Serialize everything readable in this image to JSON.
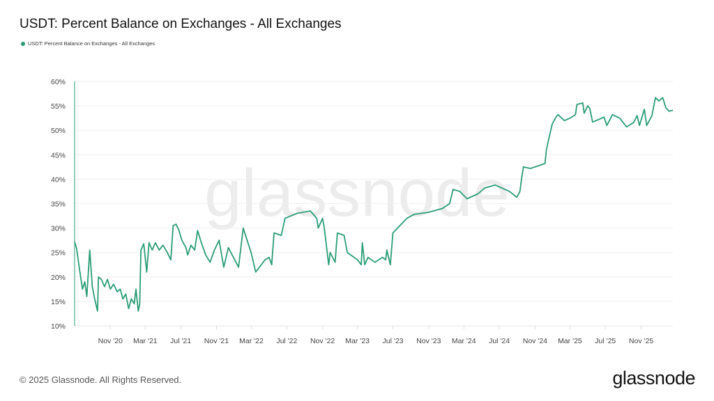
{
  "chart_data": {
    "type": "line",
    "title": "USDT: Percent Balance on Exchanges - All Exchanges",
    "xlabel": "",
    "ylabel": "",
    "ylim": [
      10,
      60
    ],
    "xlim": [
      "2020-07-01",
      "2026-02-18"
    ],
    "y_ticks": [
      "10%",
      "15%",
      "20%",
      "25%",
      "30%",
      "35%",
      "40%",
      "45%",
      "50%",
      "55%",
      "60%"
    ],
    "x_ticks": [
      {
        "date": "2020-11-01",
        "label": "Nov '20"
      },
      {
        "date": "2021-03-01",
        "label": "Mar '21"
      },
      {
        "date": "2021-07-01",
        "label": "Jul '21"
      },
      {
        "date": "2021-11-01",
        "label": "Nov '21"
      },
      {
        "date": "2022-03-01",
        "label": "Mar '22"
      },
      {
        "date": "2022-07-01",
        "label": "Jul '22"
      },
      {
        "date": "2022-11-01",
        "label": "Nov '22"
      },
      {
        "date": "2023-03-01",
        "label": "Mar '23"
      },
      {
        "date": "2023-07-01",
        "label": "Jul '23"
      },
      {
        "date": "2023-11-01",
        "label": "Nov '23"
      },
      {
        "date": "2024-03-01",
        "label": "Mar '24"
      },
      {
        "date": "2024-07-01",
        "label": "Jul '24"
      },
      {
        "date": "2024-11-01",
        "label": "Nov '24"
      },
      {
        "date": "2025-03-01",
        "label": "Mar '25"
      },
      {
        "date": "2025-07-01",
        "label": "Jul '25"
      },
      {
        "date": "2025-11-01",
        "label": "Nov '25"
      }
    ],
    "grid": true,
    "legend_placement": "top-left",
    "series": [
      {
        "name": "USDT: Percent Balance on Exchanges - All Exchanges",
        "color": "#2a9d76",
        "points": [
          [
            "2020-07-01",
            27.2
          ],
          [
            "2020-07-08",
            25.8
          ],
          [
            "2020-07-18",
            21.5
          ],
          [
            "2020-07-28",
            17.5
          ],
          [
            "2020-08-05",
            19
          ],
          [
            "2020-08-12",
            16
          ],
          [
            "2020-08-22",
            25.5
          ],
          [
            "2020-08-31",
            18
          ],
          [
            "2020-09-08",
            15.5
          ],
          [
            "2020-09-18",
            13
          ],
          [
            "2020-09-21",
            20
          ],
          [
            "2020-10-01",
            19.5
          ],
          [
            "2020-10-12",
            18
          ],
          [
            "2020-10-22",
            19.5
          ],
          [
            "2020-11-01",
            17.5
          ],
          [
            "2020-11-12",
            18.5
          ],
          [
            "2020-11-24",
            17
          ],
          [
            "2020-12-05",
            17.5
          ],
          [
            "2020-12-14",
            15.5
          ],
          [
            "2020-12-24",
            16.5
          ],
          [
            "2021-01-03",
            13.5
          ],
          [
            "2021-01-12",
            15.5
          ],
          [
            "2021-01-22",
            14.5
          ],
          [
            "2021-01-28",
            17.5
          ],
          [
            "2021-02-05",
            13
          ],
          [
            "2021-02-10",
            14.5
          ],
          [
            "2021-02-14",
            25.5
          ],
          [
            "2021-02-24",
            26.8
          ],
          [
            "2021-03-06",
            21
          ],
          [
            "2021-03-14",
            27
          ],
          [
            "2021-03-25",
            25.5
          ],
          [
            "2021-04-05",
            27
          ],
          [
            "2021-04-18",
            25.5
          ],
          [
            "2021-05-01",
            26.5
          ],
          [
            "2021-05-14",
            25.2
          ],
          [
            "2021-05-28",
            23.5
          ],
          [
            "2021-06-05",
            30.5
          ],
          [
            "2021-06-15",
            30.8
          ],
          [
            "2021-06-25",
            29.5
          ],
          [
            "2021-07-05",
            27.5
          ],
          [
            "2021-07-19",
            26
          ],
          [
            "2021-07-25",
            24.5
          ],
          [
            "2021-08-05",
            26.5
          ],
          [
            "2021-08-18",
            25.5
          ],
          [
            "2021-08-28",
            29.5
          ],
          [
            "2021-09-10",
            27
          ],
          [
            "2021-09-25",
            24.5
          ],
          [
            "2021-10-10",
            23
          ],
          [
            "2021-10-25",
            25.5
          ],
          [
            "2021-11-10",
            27.5
          ],
          [
            "2021-11-26",
            22
          ],
          [
            "2021-12-12",
            26
          ],
          [
            "2022-01-16",
            22
          ],
          [
            "2022-02-01",
            30
          ],
          [
            "2022-02-28",
            25
          ],
          [
            "2022-03-16",
            21
          ],
          [
            "2022-04-17",
            23.5
          ],
          [
            "2022-05-01",
            24
          ],
          [
            "2022-05-10",
            22.5
          ],
          [
            "2022-05-18",
            29
          ],
          [
            "2022-06-12",
            28.5
          ],
          [
            "2022-06-25",
            32
          ],
          [
            "2022-08-05",
            33
          ],
          [
            "2022-09-20",
            33.5
          ],
          [
            "2022-10-12",
            32
          ],
          [
            "2022-10-17",
            30
          ],
          [
            "2022-11-01",
            32
          ],
          [
            "2022-11-07",
            30
          ],
          [
            "2022-11-22",
            22.5
          ],
          [
            "2022-11-27",
            25
          ],
          [
            "2022-12-14",
            23
          ],
          [
            "2022-12-22",
            29
          ],
          [
            "2023-01-14",
            28.5
          ],
          [
            "2023-01-25",
            25
          ],
          [
            "2023-03-01",
            23.5
          ],
          [
            "2023-03-14",
            22.5
          ],
          [
            "2023-03-18",
            27
          ],
          [
            "2023-03-26",
            22.5
          ],
          [
            "2023-04-06",
            24
          ],
          [
            "2023-04-30",
            23
          ],
          [
            "2023-05-26",
            24
          ],
          [
            "2023-06-06",
            23.5
          ],
          [
            "2023-06-10",
            25.5
          ],
          [
            "2023-06-22",
            22.5
          ],
          [
            "2023-07-01",
            29
          ],
          [
            "2023-07-25",
            30.5
          ],
          [
            "2023-08-18",
            32
          ],
          [
            "2023-09-12",
            32.8
          ],
          [
            "2023-10-30",
            33.2
          ],
          [
            "2023-12-18",
            34
          ],
          [
            "2024-01-12",
            35
          ],
          [
            "2024-01-24",
            37.9
          ],
          [
            "2024-02-16",
            37.5
          ],
          [
            "2024-03-12",
            36
          ],
          [
            "2024-04-18",
            37
          ],
          [
            "2024-05-12",
            38.2
          ],
          [
            "2024-06-17",
            38.8
          ],
          [
            "2024-08-05",
            37.5
          ],
          [
            "2024-08-30",
            36.3
          ],
          [
            "2024-09-10",
            37.5
          ],
          [
            "2024-09-16",
            40.3
          ],
          [
            "2024-09-22",
            42.5
          ],
          [
            "2024-10-16",
            42.2
          ],
          [
            "2024-12-05",
            43.2
          ],
          [
            "2024-12-10",
            46
          ],
          [
            "2024-12-18",
            48.2
          ],
          [
            "2024-12-30",
            51.3
          ],
          [
            "2025-01-12",
            52.7
          ],
          [
            "2025-01-19",
            53.2
          ],
          [
            "2025-02-10",
            52
          ],
          [
            "2025-03-01",
            52.5
          ],
          [
            "2025-03-20",
            53.2
          ],
          [
            "2025-03-25",
            55.3
          ],
          [
            "2025-04-14",
            55.6
          ],
          [
            "2025-04-19",
            53.5
          ],
          [
            "2025-05-01",
            55
          ],
          [
            "2025-05-08",
            54.5
          ],
          [
            "2025-05-18",
            51.7
          ],
          [
            "2025-06-07",
            52.2
          ],
          [
            "2025-06-26",
            52.7
          ],
          [
            "2025-07-06",
            51
          ],
          [
            "2025-07-25",
            53.2
          ],
          [
            "2025-08-19",
            52.5
          ],
          [
            "2025-09-12",
            50.7
          ],
          [
            "2025-10-06",
            51.6
          ],
          [
            "2025-10-18",
            53
          ],
          [
            "2025-10-26",
            51
          ],
          [
            "2025-11-12",
            54.3
          ],
          [
            "2025-11-20",
            51
          ],
          [
            "2025-12-08",
            53
          ],
          [
            "2025-12-20",
            56.7
          ],
          [
            "2026-01-01",
            56
          ],
          [
            "2026-01-14",
            56.7
          ],
          [
            "2026-01-25",
            54.6
          ],
          [
            "2026-02-05",
            53.9
          ],
          [
            "2026-02-18",
            54.1
          ]
        ]
      }
    ]
  },
  "watermark": "glassnode",
  "footer": {
    "copyright": "© 2025 Glassnode. All Rights Reserved.",
    "logo_text": "glassnode"
  }
}
